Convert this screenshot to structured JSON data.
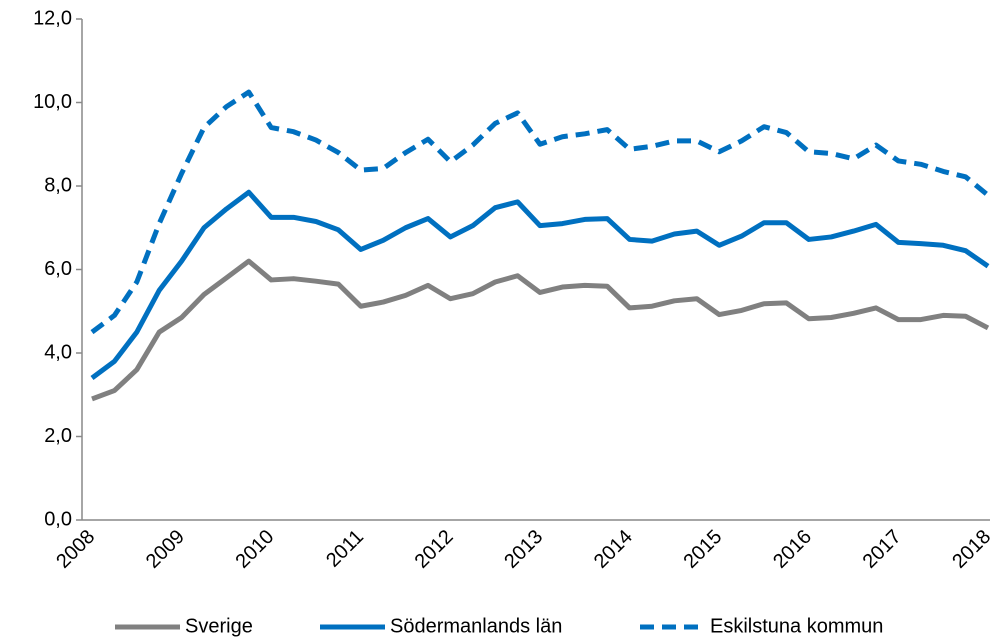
{
  "chart_data": {
    "type": "line",
    "categories": [
      "2008",
      null,
      null,
      null,
      "2009",
      null,
      null,
      null,
      "2010",
      null,
      null,
      null,
      "2011",
      null,
      null,
      null,
      "2012",
      null,
      null,
      null,
      "2013",
      null,
      null,
      null,
      "2014",
      null,
      null,
      null,
      "2015",
      null,
      null,
      null,
      "2016",
      null,
      null,
      null,
      "2017",
      null,
      null,
      null,
      "2018"
    ],
    "series": [
      {
        "name": "Sverige",
        "color": "#808080",
        "dash": false,
        "values": [
          2.9,
          3.1,
          3.6,
          4.5,
          4.85,
          5.4,
          5.8,
          6.2,
          5.75,
          5.78,
          5.72,
          5.65,
          5.12,
          5.22,
          5.38,
          5.62,
          5.3,
          5.42,
          5.7,
          5.85,
          5.45,
          5.58,
          5.62,
          5.6,
          5.08,
          5.12,
          5.25,
          5.3,
          4.92,
          5.02,
          5.18,
          5.2,
          4.82,
          4.85,
          4.95,
          5.08,
          4.8,
          4.8,
          4.9,
          4.88,
          4.6
        ]
      },
      {
        "name": "Södermanlands län",
        "color": "#0070c0",
        "dash": false,
        "values": [
          3.4,
          3.8,
          4.5,
          5.5,
          6.2,
          7.0,
          7.45,
          7.85,
          7.25,
          7.25,
          7.15,
          6.95,
          6.48,
          6.7,
          7.0,
          7.22,
          6.78,
          7.05,
          7.48,
          7.62,
          7.05,
          7.1,
          7.2,
          7.22,
          6.72,
          6.68,
          6.85,
          6.92,
          6.58,
          6.8,
          7.12,
          7.12,
          6.72,
          6.78,
          6.92,
          7.08,
          6.65,
          6.62,
          6.58,
          6.45,
          6.08
        ]
      },
      {
        "name": "Eskilstuna kommun",
        "color": "#0070c0",
        "dash": true,
        "values": [
          4.5,
          4.9,
          5.7,
          7.1,
          8.3,
          9.4,
          9.9,
          10.25,
          9.4,
          9.3,
          9.1,
          8.8,
          8.38,
          8.42,
          8.8,
          9.12,
          8.58,
          8.98,
          9.5,
          9.75,
          9.0,
          9.18,
          9.25,
          9.35,
          8.88,
          8.95,
          9.08,
          9.08,
          8.82,
          9.08,
          9.42,
          9.28,
          8.82,
          8.78,
          8.65,
          8.98,
          8.6,
          8.52,
          8.35,
          8.22,
          7.78
        ]
      }
    ],
    "ylim": [
      0,
      12
    ],
    "yticks": [
      {
        "value": 0,
        "label": "0,0"
      },
      {
        "value": 2,
        "label": "2,0"
      },
      {
        "value": 4,
        "label": "4,0"
      },
      {
        "value": 6,
        "label": "6,0"
      },
      {
        "value": 8,
        "label": "8,0"
      },
      {
        "value": 10,
        "label": "10,0"
      },
      {
        "value": 12,
        "label": "12,0"
      }
    ],
    "grid": false,
    "legend": "bottom"
  }
}
